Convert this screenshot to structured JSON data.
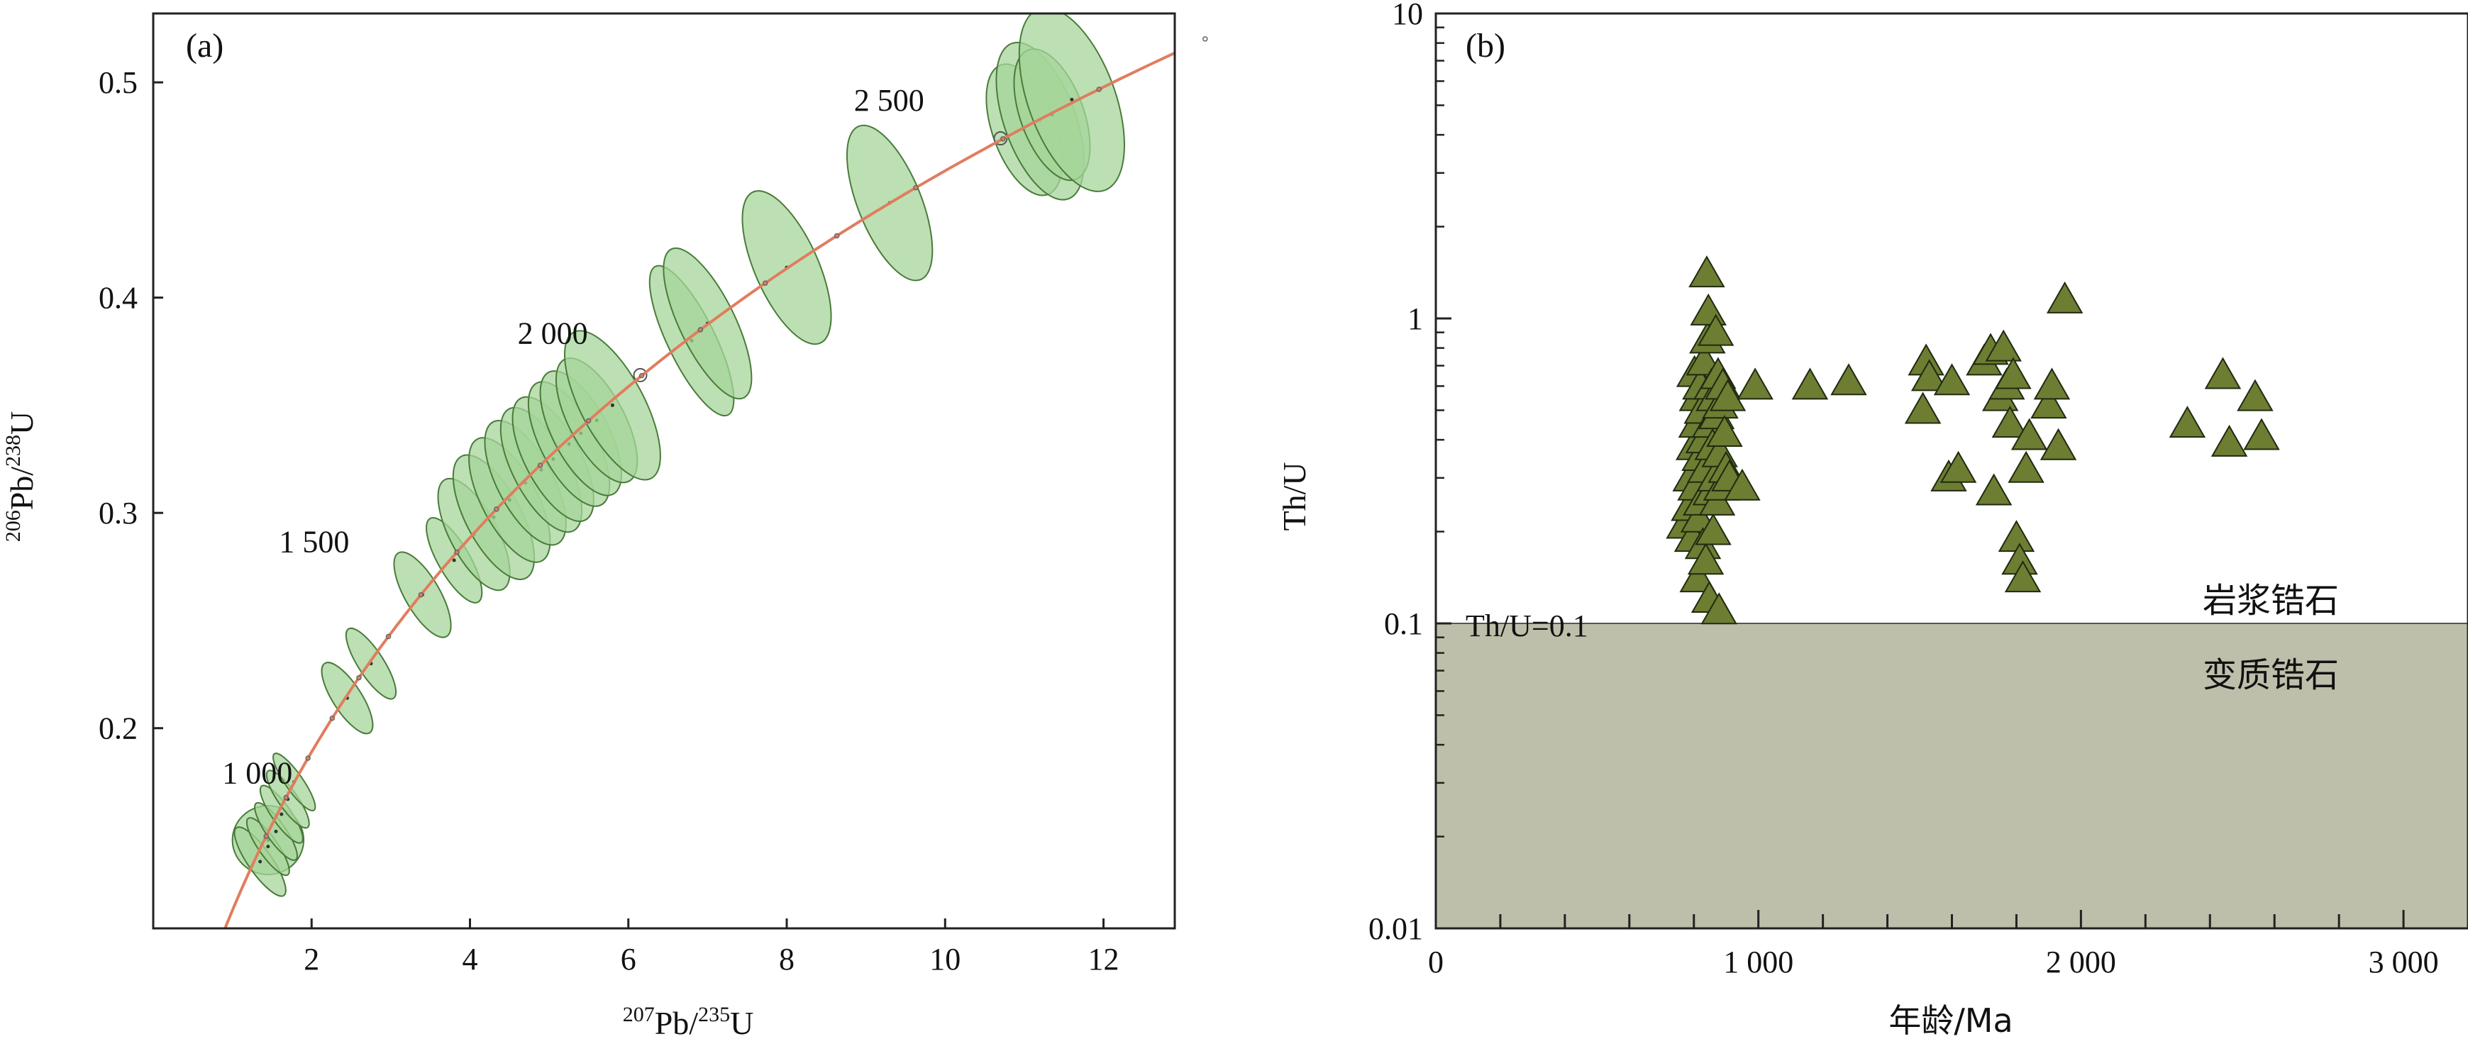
{
  "chart_data": [
    {
      "type": "scatter",
      "panel_label": "(a)",
      "xlabel": "207Pb/235U",
      "ylabel": "206Pb/238U",
      "xlim": [
        0,
        12.9
      ],
      "ylim": [
        0.107,
        0.532
      ],
      "x_ticks": [
        2,
        4,
        6,
        8,
        10,
        12
      ],
      "x_tick_labels": [
        "2",
        "4",
        "6",
        "8",
        "10",
        "12"
      ],
      "y_ticks": [
        0.2,
        0.3,
        0.4,
        0.5
      ],
      "y_tick_labels": [
        "0.2",
        "0.3",
        "0.4",
        "0.5"
      ],
      "grid": false,
      "concordia_ages": [
        900,
        1000,
        1100,
        1200,
        1300,
        1400,
        1500,
        1600,
        1700,
        1800,
        1900,
        2000,
        2100,
        2200,
        2300,
        2400,
        2500,
        2600,
        2700,
        2800
      ],
      "age_labels": [
        {
          "age": 1000,
          "text": "1 000"
        },
        {
          "age": 1500,
          "text": "1 500"
        },
        {
          "age": 2000,
          "text": "2 000"
        },
        {
          "age": 2500,
          "text": "2 500"
        }
      ],
      "ellipses": [
        {
          "x": 1.45,
          "y": 0.148,
          "rx": 0.45,
          "ry": 0.005,
          "angle": 0
        },
        {
          "x": 1.35,
          "y": 0.138,
          "rx": 0.15,
          "ry": 0.006,
          "angle": 35
        },
        {
          "x": 1.45,
          "y": 0.145,
          "rx": 0.12,
          "ry": 0.005,
          "angle": 35
        },
        {
          "x": 1.55,
          "y": 0.152,
          "rx": 0.12,
          "ry": 0.005,
          "angle": 35
        },
        {
          "x": 1.62,
          "y": 0.16,
          "rx": 0.12,
          "ry": 0.005,
          "angle": 35
        },
        {
          "x": 1.7,
          "y": 0.167,
          "rx": 0.12,
          "ry": 0.005,
          "angle": 35
        },
        {
          "x": 1.78,
          "y": 0.175,
          "rx": 0.11,
          "ry": 0.005,
          "angle": 35
        },
        {
          "x": 2.45,
          "y": 0.214,
          "rx": 0.18,
          "ry": 0.006,
          "angle": 33
        },
        {
          "x": 2.75,
          "y": 0.23,
          "rx": 0.16,
          "ry": 0.006,
          "angle": 33
        },
        {
          "x": 3.4,
          "y": 0.262,
          "rx": 0.22,
          "ry": 0.007,
          "angle": 30
        },
        {
          "x": 3.8,
          "y": 0.278,
          "rx": 0.2,
          "ry": 0.007,
          "angle": 30
        },
        {
          "x": 4.05,
          "y": 0.29,
          "rx": 0.3,
          "ry": 0.009,
          "angle": 28
        },
        {
          "x": 4.3,
          "y": 0.298,
          "rx": 0.35,
          "ry": 0.01,
          "angle": 28
        },
        {
          "x": 4.5,
          "y": 0.306,
          "rx": 0.35,
          "ry": 0.01,
          "angle": 28
        },
        {
          "x": 4.7,
          "y": 0.314,
          "rx": 0.35,
          "ry": 0.01,
          "angle": 28
        },
        {
          "x": 4.9,
          "y": 0.32,
          "rx": 0.35,
          "ry": 0.01,
          "angle": 28
        },
        {
          "x": 5.05,
          "y": 0.325,
          "rx": 0.35,
          "ry": 0.01,
          "angle": 28
        },
        {
          "x": 5.25,
          "y": 0.332,
          "rx": 0.35,
          "ry": 0.01,
          "angle": 28
        },
        {
          "x": 5.4,
          "y": 0.337,
          "rx": 0.35,
          "ry": 0.01,
          "angle": 28
        },
        {
          "x": 5.6,
          "y": 0.343,
          "rx": 0.35,
          "ry": 0.01,
          "angle": 28
        },
        {
          "x": 5.8,
          "y": 0.35,
          "rx": 0.4,
          "ry": 0.012,
          "angle": 28
        },
        {
          "x": 6.8,
          "y": 0.38,
          "rx": 0.3,
          "ry": 0.012,
          "angle": 26
        },
        {
          "x": 7.0,
          "y": 0.388,
          "rx": 0.35,
          "ry": 0.012,
          "angle": 26
        },
        {
          "x": 8.0,
          "y": 0.414,
          "rx": 0.4,
          "ry": 0.012,
          "angle": 24
        },
        {
          "x": 9.3,
          "y": 0.444,
          "rx": 0.4,
          "ry": 0.012,
          "angle": 22
        },
        {
          "x": 11.0,
          "y": 0.478,
          "rx": 0.4,
          "ry": 0.01,
          "angle": 20
        },
        {
          "x": 11.2,
          "y": 0.482,
          "rx": 0.45,
          "ry": 0.012,
          "angle": 20
        },
        {
          "x": 11.35,
          "y": 0.485,
          "rx": 0.4,
          "ry": 0.01,
          "angle": 20
        },
        {
          "x": 11.6,
          "y": 0.492,
          "rx": 0.55,
          "ry": 0.014,
          "angle": 20
        }
      ],
      "small_circles": [
        {
          "x": 6.15,
          "y": 0.364
        },
        {
          "x": 10.7,
          "y": 0.474
        }
      ],
      "colors": {
        "ellipse_fill": "#a6d59a",
        "ellipse_edge": "#4a7b3a",
        "concordia": "#e07d5e"
      }
    },
    {
      "type": "scatter",
      "panel_label": "(b)",
      "xlabel": "年龄/Ma",
      "ylabel": "Th/U",
      "xlim": [
        0,
        3200
      ],
      "ylim": [
        0.01,
        10
      ],
      "y_scale": "log",
      "x_ticks": [
        0,
        1000,
        2000,
        3000
      ],
      "x_tick_labels": [
        "0",
        "1 000",
        "2 000",
        "3 000"
      ],
      "x_minor_step": 200,
      "y_ticks": [
        0.01,
        0.1,
        1,
        10
      ],
      "y_tick_labels": [
        "0.01",
        "0.1",
        "1",
        "10"
      ],
      "grid": false,
      "threshold": {
        "value": 0.1,
        "label": "Th/U=0.1"
      },
      "regions": {
        "above": "岩浆锆石",
        "below": "变质锆石"
      },
      "points": [
        [
          770,
          0.21
        ],
        [
          785,
          0.24
        ],
        [
          790,
          0.3
        ],
        [
          795,
          0.19
        ],
        [
          800,
          0.38
        ],
        [
          802,
          0.66
        ],
        [
          805,
          0.28
        ],
        [
          808,
          0.45
        ],
        [
          810,
          0.55
        ],
        [
          812,
          0.14
        ],
        [
          815,
          0.22
        ],
        [
          818,
          0.35
        ],
        [
          820,
          0.6
        ],
        [
          822,
          0.25
        ],
        [
          825,
          0.5
        ],
        [
          828,
          0.18
        ],
        [
          830,
          0.4
        ],
        [
          832,
          0.72
        ],
        [
          835,
          0.32
        ],
        [
          837,
          0.16
        ],
        [
          840,
          1.4
        ],
        [
          842,
          0.85
        ],
        [
          845,
          1.05
        ],
        [
          848,
          0.12
        ],
        [
          850,
          0.45
        ],
        [
          852,
          0.27
        ],
        [
          855,
          0.6
        ],
        [
          858,
          0.38
        ],
        [
          860,
          0.2
        ],
        [
          862,
          0.55
        ],
        [
          865,
          0.3
        ],
        [
          868,
          0.9
        ],
        [
          870,
          0.48
        ],
        [
          872,
          0.25
        ],
        [
          875,
          0.65
        ],
        [
          878,
          0.11
        ],
        [
          880,
          0.36
        ],
        [
          882,
          0.52
        ],
        [
          885,
          0.28
        ],
        [
          890,
          0.6
        ],
        [
          895,
          0.42
        ],
        [
          900,
          0.32
        ],
        [
          905,
          0.55
        ],
        [
          910,
          0.3
        ],
        [
          950,
          0.28
        ],
        [
          990,
          0.6
        ],
        [
          1160,
          0.6
        ],
        [
          1280,
          0.62
        ],
        [
          1510,
          0.5
        ],
        [
          1520,
          0.72
        ],
        [
          1530,
          0.64
        ],
        [
          1590,
          0.3
        ],
        [
          1600,
          0.62
        ],
        [
          1620,
          0.32
        ],
        [
          1700,
          0.72
        ],
        [
          1720,
          0.78
        ],
        [
          1730,
          0.27
        ],
        [
          1750,
          0.55
        ],
        [
          1760,
          0.8
        ],
        [
          1770,
          0.6
        ],
        [
          1780,
          0.45
        ],
        [
          1790,
          0.65
        ],
        [
          1800,
          0.19
        ],
        [
          1810,
          0.16
        ],
        [
          1820,
          0.14
        ],
        [
          1830,
          0.32
        ],
        [
          1840,
          0.41
        ],
        [
          1900,
          0.52
        ],
        [
          1910,
          0.6
        ],
        [
          1930,
          0.38
        ],
        [
          1950,
          1.15
        ],
        [
          2330,
          0.45
        ],
        [
          2440,
          0.65
        ],
        [
          2460,
          0.39
        ],
        [
          2540,
          0.55
        ],
        [
          2560,
          0.41
        ]
      ],
      "colors": {
        "marker_fill": "#6d7d32",
        "marker_edge": "#1f2a10",
        "metamorphic_region": "#bebfaa"
      }
    }
  ]
}
